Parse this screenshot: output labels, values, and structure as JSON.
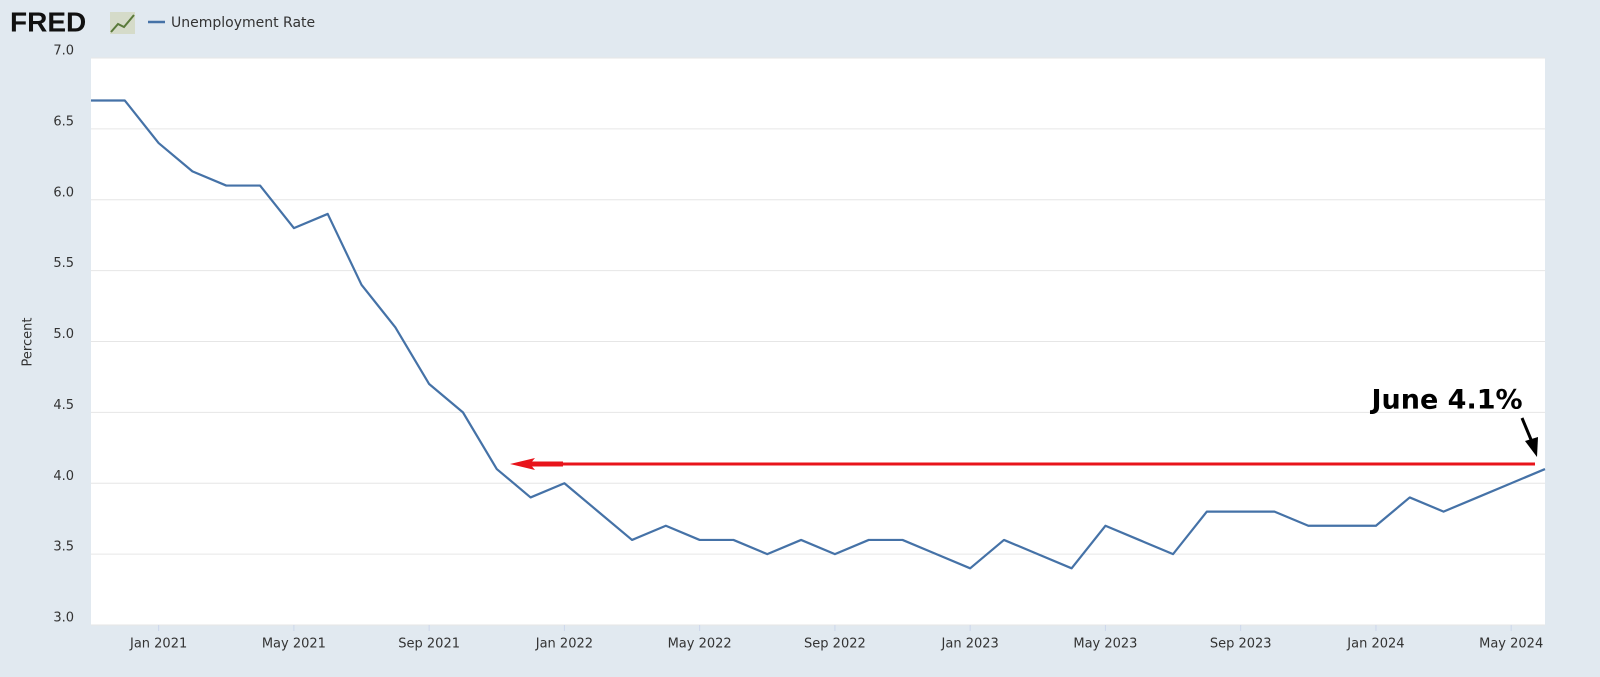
{
  "logo": "FRED",
  "chart_data": {
    "type": "line",
    "y_label": "Percent",
    "annotation": "June 4.1%",
    "x": [
      "2020-11",
      "2020-12",
      "2021-01",
      "2021-02",
      "2021-03",
      "2021-04",
      "2021-05",
      "2021-06",
      "2021-07",
      "2021-08",
      "2021-09",
      "2021-10",
      "2021-11",
      "2021-12",
      "2022-01",
      "2022-02",
      "2022-03",
      "2022-04",
      "2022-05",
      "2022-06",
      "2022-07",
      "2022-08",
      "2022-09",
      "2022-10",
      "2022-11",
      "2022-12",
      "2023-01",
      "2023-02",
      "2023-03",
      "2023-04",
      "2023-05",
      "2023-06",
      "2023-07",
      "2023-08",
      "2023-09",
      "2023-10",
      "2023-11",
      "2023-12",
      "2024-01",
      "2024-02",
      "2024-03",
      "2024-04",
      "2024-05",
      "2024-06"
    ],
    "series": [
      {
        "name": "Unemployment Rate",
        "color": "#4572a7",
        "values": [
          6.7,
          6.7,
          6.4,
          6.2,
          6.1,
          6.1,
          5.8,
          5.9,
          5.4,
          5.1,
          4.7,
          4.5,
          4.1,
          3.9,
          4.0,
          3.8,
          3.6,
          3.7,
          3.6,
          3.6,
          3.5,
          3.6,
          3.5,
          3.6,
          3.6,
          3.5,
          3.4,
          3.6,
          3.5,
          3.4,
          3.7,
          3.6,
          3.5,
          3.8,
          3.8,
          3.8,
          3.7,
          3.7,
          3.7,
          3.9,
          3.8,
          3.9,
          4.0,
          4.1
        ]
      }
    ],
    "xlim": [
      "2020-11",
      "2024-06"
    ],
    "xticks": [
      {
        "value": "2021-01",
        "label": "Jan 2021"
      },
      {
        "value": "2021-05",
        "label": "May 2021"
      },
      {
        "value": "2021-09",
        "label": "Sep 2021"
      },
      {
        "value": "2022-01",
        "label": "Jan 2022"
      },
      {
        "value": "2022-05",
        "label": "May 2022"
      },
      {
        "value": "2022-09",
        "label": "Sep 2022"
      },
      {
        "value": "2023-01",
        "label": "Jan 2023"
      },
      {
        "value": "2023-05",
        "label": "May 2023"
      },
      {
        "value": "2023-09",
        "label": "Sep 2023"
      },
      {
        "value": "2024-01",
        "label": "Jan 2024"
      },
      {
        "value": "2024-05",
        "label": "May 2024"
      }
    ],
    "ylim": [
      3,
      7
    ],
    "yticks": [
      {
        "value": 3,
        "label": "3.0"
      },
      {
        "value": 3.5,
        "label": "3.5"
      },
      {
        "value": 4,
        "label": "4.0"
      },
      {
        "value": 4.5,
        "label": "4.5"
      },
      {
        "value": 5,
        "label": "5.0"
      },
      {
        "value": 5.5,
        "label": "5.5"
      },
      {
        "value": 6,
        "label": "6.0"
      },
      {
        "value": 6.5,
        "label": "6.5"
      },
      {
        "value": 7,
        "label": "7.0"
      }
    ],
    "grid": true
  }
}
